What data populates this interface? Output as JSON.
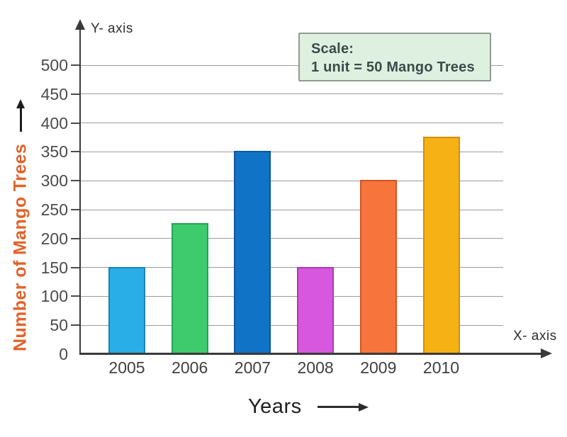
{
  "axes": {
    "y_axis_label": "Y- axis",
    "x_axis_label": "X- axis"
  },
  "scale_box": {
    "line1": "Scale:",
    "line2": "1 unit = 50 Mango Trees"
  },
  "chart_data": {
    "type": "bar",
    "categories": [
      "2005",
      "2006",
      "2007",
      "2008",
      "2009",
      "2010"
    ],
    "values": [
      150,
      225,
      350,
      150,
      300,
      375
    ],
    "bar_colors": [
      "#29aee7",
      "#3ecb6e",
      "#1173c6",
      "#d757de",
      "#f7753c",
      "#f6b115"
    ],
    "bar_border_colors": [
      "#1a84b8",
      "#26a253",
      "#0b57a0",
      "#aa3cb4",
      "#d4541e",
      "#cd9006"
    ],
    "title": "",
    "xlabel": "Years",
    "ylabel": "Number of Mango Trees",
    "ylabel_color": "#e2622b",
    "ylim": [
      0,
      500
    ],
    "ytick_step": 50,
    "y_tick_labels": [
      "0",
      "50",
      "100",
      "150",
      "200",
      "250",
      "300",
      "350",
      "400",
      "450",
      "500"
    ],
    "grid": true,
    "legend": "none",
    "scale_note": "Scale: 1 unit = 50 Mango Trees"
  }
}
